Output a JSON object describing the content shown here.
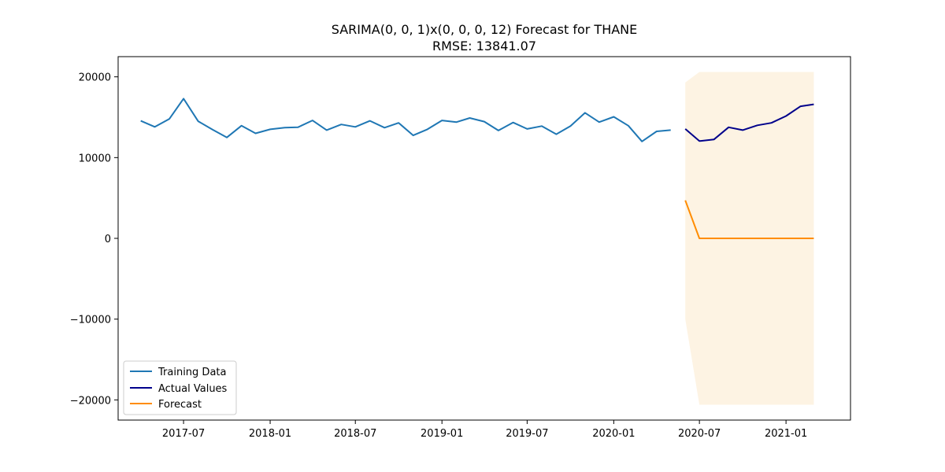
{
  "chart_data": {
    "type": "line",
    "title": "SARIMA(0, 0, 1)x(0, 0, 0, 12) Forecast for THANE",
    "subtitle": "RMSE: 13841.07",
    "xlabel": "",
    "ylabel": "",
    "x_ticks": [
      "2017-07",
      "2018-01",
      "2018-07",
      "2019-01",
      "2019-07",
      "2020-01",
      "2020-07",
      "2021-01"
    ],
    "y_ticks": [
      20000,
      10000,
      0,
      -10000,
      -20000
    ],
    "y_tick_labels": [
      "20000",
      "10000",
      "0",
      "−10000",
      "−20000"
    ],
    "xlim": [
      "2017-02-12",
      "2021-05-18"
    ],
    "ylim": [
      -22500,
      22500
    ],
    "grid": false,
    "legend_position": "lower-left",
    "series": [
      {
        "name": "Training Data",
        "color": "#1f77b4",
        "points": [
          [
            "2017-04-01",
            14550
          ],
          [
            "2017-05-01",
            13800
          ],
          [
            "2017-06-01",
            14800
          ],
          [
            "2017-07-01",
            17300
          ],
          [
            "2017-08-01",
            14500
          ],
          [
            "2017-09-01",
            13450
          ],
          [
            "2017-10-01",
            12500
          ],
          [
            "2017-11-01",
            13950
          ],
          [
            "2017-12-01",
            13000
          ],
          [
            "2018-01-01",
            13500
          ],
          [
            "2018-02-01",
            13700
          ],
          [
            "2018-03-01",
            13750
          ],
          [
            "2018-04-01",
            14600
          ],
          [
            "2018-05-01",
            13400
          ],
          [
            "2018-06-01",
            14100
          ],
          [
            "2018-07-01",
            13800
          ],
          [
            "2018-08-01",
            14550
          ],
          [
            "2018-09-01",
            13700
          ],
          [
            "2018-10-01",
            14300
          ],
          [
            "2018-11-01",
            12750
          ],
          [
            "2018-12-01",
            13500
          ],
          [
            "2019-01-01",
            14600
          ],
          [
            "2019-02-01",
            14400
          ],
          [
            "2019-03-01",
            14900
          ],
          [
            "2019-04-01",
            14450
          ],
          [
            "2019-05-01",
            13350
          ],
          [
            "2019-06-01",
            14350
          ],
          [
            "2019-07-01",
            13550
          ],
          [
            "2019-08-01",
            13900
          ],
          [
            "2019-09-01",
            12900
          ],
          [
            "2019-10-01",
            13900
          ],
          [
            "2019-11-01",
            15550
          ],
          [
            "2019-12-01",
            14400
          ],
          [
            "2020-01-01",
            15050
          ],
          [
            "2020-02-01",
            13950
          ],
          [
            "2020-03-01",
            12000
          ],
          [
            "2020-04-01",
            13250
          ],
          [
            "2020-05-01",
            13400
          ]
        ]
      },
      {
        "name": "Actual Values",
        "color": "#00008b",
        "points": [
          [
            "2020-06-01",
            13550
          ],
          [
            "2020-07-01",
            12050
          ],
          [
            "2020-08-01",
            12250
          ],
          [
            "2020-09-01",
            13750
          ],
          [
            "2020-10-01",
            13400
          ],
          [
            "2020-11-01",
            14000
          ],
          [
            "2020-12-01",
            14300
          ],
          [
            "2021-01-01",
            15150
          ],
          [
            "2021-02-01",
            16350
          ],
          [
            "2021-03-01",
            16600
          ]
        ]
      },
      {
        "name": "Forecast",
        "color": "#ff8c00",
        "points": [
          [
            "2020-06-01",
            4700
          ],
          [
            "2020-07-01",
            0
          ],
          [
            "2020-08-01",
            0
          ],
          [
            "2020-09-01",
            0
          ],
          [
            "2020-10-01",
            0
          ],
          [
            "2020-11-01",
            0
          ],
          [
            "2020-12-01",
            0
          ],
          [
            "2021-01-01",
            0
          ],
          [
            "2021-02-01",
            0
          ],
          [
            "2021-03-01",
            0
          ]
        ]
      }
    ],
    "confidence_interval": {
      "color": "#fdf3e3",
      "upper": [
        [
          "2020-06-01",
          19300
        ],
        [
          "2020-07-01",
          20600
        ],
        [
          "2020-08-01",
          20600
        ],
        [
          "2020-09-01",
          20600
        ],
        [
          "2020-10-01",
          20600
        ],
        [
          "2020-11-01",
          20600
        ],
        [
          "2020-12-01",
          20600
        ],
        [
          "2021-01-01",
          20600
        ],
        [
          "2021-02-01",
          20600
        ],
        [
          "2021-03-01",
          20600
        ]
      ],
      "lower": [
        [
          "2020-06-01",
          -10000
        ],
        [
          "2020-07-01",
          -20600
        ],
        [
          "2020-08-01",
          -20600
        ],
        [
          "2020-09-01",
          -20600
        ],
        [
          "2020-10-01",
          -20600
        ],
        [
          "2020-11-01",
          -20600
        ],
        [
          "2020-12-01",
          -20600
        ],
        [
          "2021-01-01",
          -20600
        ],
        [
          "2021-02-01",
          -20600
        ],
        [
          "2021-03-01",
          -20600
        ]
      ]
    }
  }
}
